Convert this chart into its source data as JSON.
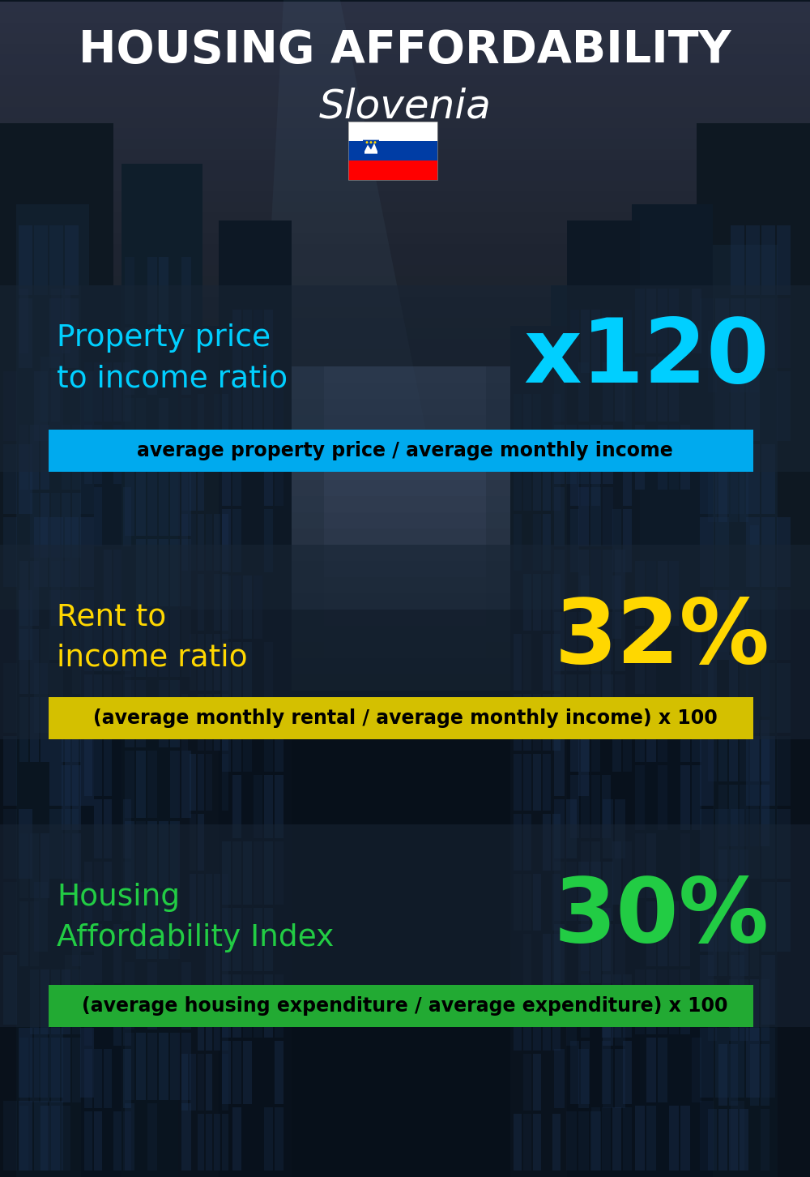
{
  "title_line1": "HOUSING AFFORDABILITY",
  "title_line2": "Slovenia",
  "background_color": "#0d1b2a",
  "section1_label": "Property price\nto income ratio",
  "section1_value": "x120",
  "section1_label_color": "#00cfff",
  "section1_value_color": "#00cfff",
  "section1_formula": "average property price / average monthly income",
  "section1_formula_bg": "#00aaee",
  "section2_label": "Rent to\nincome ratio",
  "section2_value": "32%",
  "section2_label_color": "#ffd700",
  "section2_value_color": "#ffd700",
  "section2_formula": "(average monthly rental / average monthly income) x 100",
  "section2_formula_bg": "#d4c000",
  "section3_label": "Housing\nAffordability Index",
  "section3_value": "30%",
  "section3_label_color": "#22cc44",
  "section3_value_color": "#22cc44",
  "section3_formula": "(average housing expenditure / average expenditure) x 100",
  "section3_formula_bg": "#22aa33",
  "title_color": "#ffffff",
  "title_fontsize": 40,
  "subtitle_fontsize": 36,
  "label_fontsize": 27,
  "value_fontsize": 80,
  "formula_fontsize": 17,
  "fig_width": 10.0,
  "fig_height": 14.52,
  "dpi": 100
}
